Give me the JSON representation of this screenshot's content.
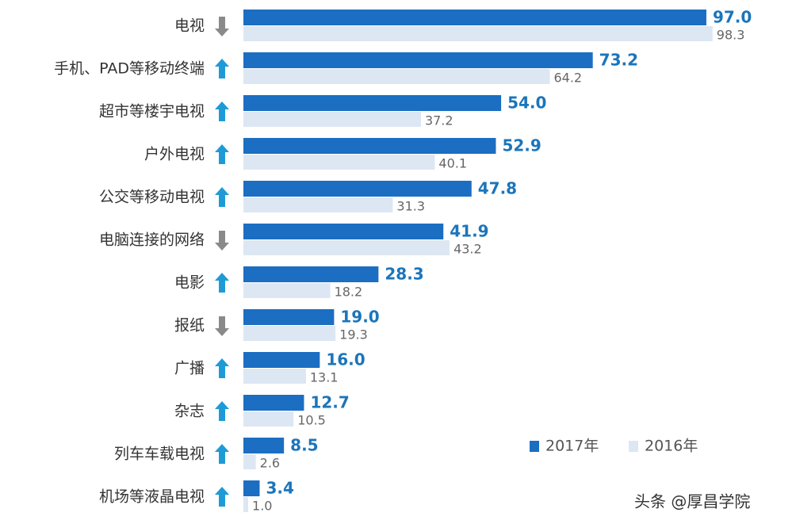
{
  "chart_data": {
    "type": "hbar",
    "categories": [
      "电视",
      "手机、PAD等移动终端",
      "超市等楼宇电视",
      "户外电视",
      "公交等移动电视",
      "电脑连接的网络",
      "电影",
      "报纸",
      "广播",
      "杂志",
      "列车车载电视",
      "机场等液晶电视"
    ],
    "series": [
      {
        "name": "2017年",
        "color": "#1b6ec2",
        "label_color": "#1b75bb",
        "values": [
          97.0,
          73.2,
          54.0,
          52.9,
          47.8,
          41.9,
          28.3,
          19.0,
          16.0,
          12.7,
          8.5,
          3.4
        ],
        "value_labels": [
          "97.0",
          "73.2",
          "54.0",
          "52.9",
          "47.8",
          "41.9",
          "28.3",
          "19.0",
          "16.0",
          "12.7",
          "8.5",
          "3.4"
        ]
      },
      {
        "name": "2016年",
        "color": "#dce7f3",
        "label_color": "#666666",
        "values": [
          98.3,
          64.2,
          37.2,
          40.1,
          31.3,
          43.2,
          18.2,
          19.3,
          13.1,
          10.5,
          2.6,
          1.0
        ],
        "value_labels": [
          "98.3",
          "64.2",
          "37.2",
          "40.1",
          "31.3",
          "43.2",
          "18.2",
          "19.3",
          "13.1",
          "10.5",
          "2.6",
          "1.0"
        ]
      }
    ],
    "xlim": [
      0,
      100
    ],
    "watermark": "头条 @厚昌学院"
  }
}
